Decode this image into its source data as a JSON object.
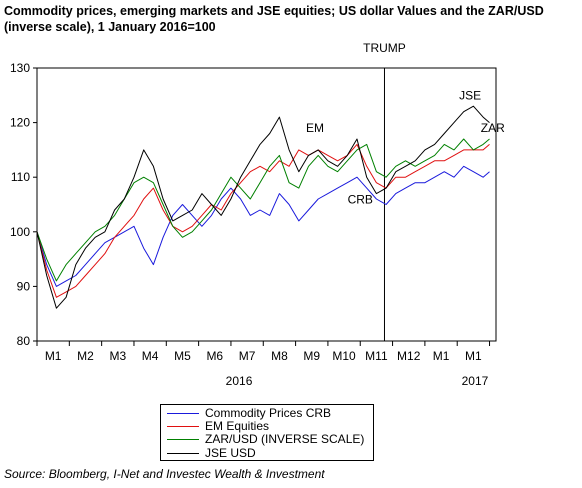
{
  "title": "Commodity prices, emerging markets and JSE equities; US dollar Values and the ZAR/USD (inverse scale), 1 January 2016=100",
  "source": "Source: Bloomberg, I-Net and Investec Wealth & Investment",
  "colors": {
    "crb": "#1a1adc",
    "em": "#e01010",
    "zar": "#008000",
    "jse": "#000000"
  },
  "chart_data": {
    "type": "line",
    "ylim": [
      80,
      130
    ],
    "yticks": [
      80,
      90,
      100,
      110,
      120,
      130
    ],
    "x_range": [
      0,
      14.2
    ],
    "month_ticks": [
      {
        "label": "M1",
        "x": 0.5
      },
      {
        "label": "M2",
        "x": 1.5
      },
      {
        "label": "M3",
        "x": 2.5
      },
      {
        "label": "M4",
        "x": 3.5
      },
      {
        "label": "M5",
        "x": 4.5
      },
      {
        "label": "M6",
        "x": 5.5
      },
      {
        "label": "M7",
        "x": 6.5
      },
      {
        "label": "M8",
        "x": 7.5
      },
      {
        "label": "M9",
        "x": 8.5
      },
      {
        "label": "M10",
        "x": 9.5
      },
      {
        "label": "M11",
        "x": 10.5
      },
      {
        "label": "M12",
        "x": 11.5
      },
      {
        "label": "M1",
        "x": 12.5
      },
      {
        "label": "M1",
        "x": 13.5
      }
    ],
    "year_labels": [
      {
        "label": "2016",
        "x": 6.25
      },
      {
        "label": "2017",
        "x": 13.55
      }
    ],
    "event_line": {
      "label": "TRUMP",
      "x": 10.75
    },
    "annotations": [
      {
        "text": "EM",
        "x": 8.6,
        "y": 118.3
      },
      {
        "text": "JSE",
        "x": 13.4,
        "y": 124.2
      },
      {
        "text": "ZAR",
        "x": 14.1,
        "y": 118.3
      },
      {
        "text": "CRB",
        "x": 10.0,
        "y": 105.2
      }
    ],
    "series": [
      {
        "name": "Commodity Prices CRB",
        "key": "crb",
        "x": [
          0,
          0.3,
          0.6,
          0.9,
          1.2,
          1.5,
          1.8,
          2.1,
          2.4,
          2.7,
          3.0,
          3.3,
          3.6,
          3.9,
          4.2,
          4.5,
          4.8,
          5.1,
          5.4,
          5.7,
          6.0,
          6.3,
          6.6,
          6.9,
          7.2,
          7.5,
          7.8,
          8.1,
          8.4,
          8.7,
          9.0,
          9.3,
          9.6,
          9.9,
          10.2,
          10.5,
          10.8,
          11.1,
          11.4,
          11.7,
          12.0,
          12.3,
          12.6,
          12.9,
          13.2,
          13.5,
          13.8,
          14.0
        ],
        "values": [
          100,
          94,
          90,
          91,
          92,
          94,
          96,
          98,
          99,
          100,
          101,
          97,
          94,
          99,
          103,
          105,
          103,
          101,
          103,
          106,
          108,
          106,
          103,
          104,
          103,
          107,
          105,
          102,
          104,
          106,
          107,
          108,
          109,
          110,
          108,
          106,
          105,
          107,
          108,
          109,
          109,
          110,
          111,
          110,
          112,
          111,
          110,
          111
        ]
      },
      {
        "name": "EM Equities",
        "key": "em",
        "x": [
          0,
          0.3,
          0.6,
          0.9,
          1.2,
          1.5,
          1.8,
          2.1,
          2.4,
          2.7,
          3.0,
          3.3,
          3.6,
          3.9,
          4.2,
          4.5,
          4.8,
          5.1,
          5.4,
          5.7,
          6.0,
          6.3,
          6.6,
          6.9,
          7.2,
          7.5,
          7.8,
          8.1,
          8.4,
          8.7,
          9.0,
          9.3,
          9.6,
          9.9,
          10.2,
          10.5,
          10.8,
          11.1,
          11.4,
          11.7,
          12.0,
          12.3,
          12.6,
          12.9,
          13.2,
          13.5,
          13.8,
          14.0
        ],
        "values": [
          100,
          93,
          88,
          89,
          90,
          92,
          94,
          96,
          99,
          101,
          103,
          106,
          108,
          104,
          101,
          100,
          101,
          103,
          105,
          104,
          107,
          109,
          111,
          112,
          111,
          113,
          112,
          115,
          114,
          115,
          114,
          113,
          114,
          116,
          112,
          109,
          108,
          110,
          110,
          111,
          112,
          113,
          113,
          114,
          115,
          115,
          115,
          116
        ]
      },
      {
        "name": "ZAR/USD (INVERSE SCALE)",
        "key": "zar",
        "x": [
          0,
          0.3,
          0.6,
          0.9,
          1.2,
          1.5,
          1.8,
          2.1,
          2.4,
          2.7,
          3.0,
          3.3,
          3.6,
          3.9,
          4.2,
          4.5,
          4.8,
          5.1,
          5.4,
          5.7,
          6.0,
          6.3,
          6.6,
          6.9,
          7.2,
          7.5,
          7.8,
          8.1,
          8.4,
          8.7,
          9.0,
          9.3,
          9.6,
          9.9,
          10.2,
          10.5,
          10.8,
          11.1,
          11.4,
          11.7,
          12.0,
          12.3,
          12.6,
          12.9,
          13.2,
          13.5,
          13.8,
          14.0
        ],
        "values": [
          100,
          95,
          91,
          94,
          96,
          98,
          100,
          101,
          103,
          106,
          109,
          110,
          109,
          105,
          101,
          99,
          100,
          102,
          104,
          107,
          110,
          108,
          106,
          109,
          112,
          114,
          109,
          108,
          112,
          114,
          112,
          111,
          113,
          115,
          116,
          111,
          110,
          112,
          113,
          112,
          113,
          114,
          116,
          115,
          117,
          115,
          116,
          117
        ]
      },
      {
        "name": "JSE USD",
        "key": "jse",
        "x": [
          0,
          0.3,
          0.6,
          0.9,
          1.2,
          1.5,
          1.8,
          2.1,
          2.4,
          2.7,
          3.0,
          3.3,
          3.6,
          3.9,
          4.2,
          4.5,
          4.8,
          5.1,
          5.4,
          5.7,
          6.0,
          6.3,
          6.6,
          6.9,
          7.2,
          7.5,
          7.8,
          8.1,
          8.4,
          8.7,
          9.0,
          9.3,
          9.6,
          9.9,
          10.2,
          10.5,
          10.8,
          11.1,
          11.4,
          11.7,
          12.0,
          12.3,
          12.6,
          12.9,
          13.2,
          13.5,
          13.8,
          14.0
        ],
        "values": [
          100,
          92,
          86,
          88,
          94,
          97,
          99,
          100,
          104,
          106,
          110,
          115,
          112,
          106,
          102,
          103,
          104,
          107,
          105,
          103,
          106,
          110,
          113,
          116,
          118,
          121,
          115,
          111,
          114,
          115,
          113,
          112,
          114,
          117,
          110,
          107,
          108,
          111,
          112,
          113,
          115,
          116,
          118,
          120,
          122,
          123,
          121,
          120
        ]
      }
    ]
  }
}
